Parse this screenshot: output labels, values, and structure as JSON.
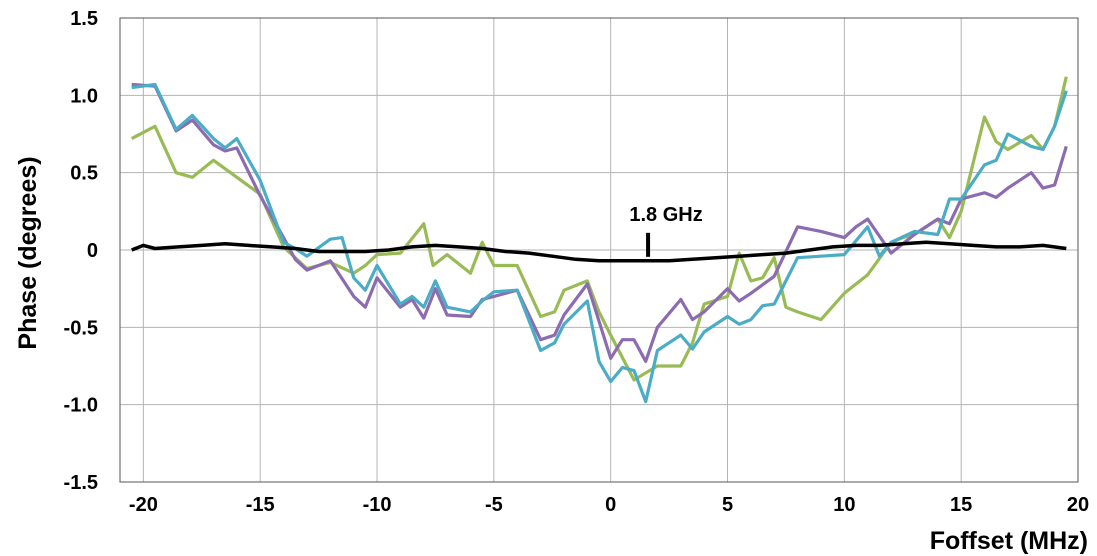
{
  "chart_data": {
    "type": "line",
    "title": "",
    "xlabel": "Foffset (MHz)",
    "ylabel": "Phase (degrees)",
    "xlim": [
      -21,
      20
    ],
    "ylim": [
      -1.5,
      1.5
    ],
    "x_ticks": [
      -20,
      -15,
      -10,
      -5,
      0,
      5,
      10,
      15,
      20
    ],
    "x_tick_labels": [
      "-20",
      "-15",
      "-10",
      "-5",
      "0",
      "5",
      "10",
      "15",
      "20"
    ],
    "y_ticks": [
      1.5,
      1.0,
      0.5,
      0,
      -0.5,
      -1.0,
      -1.5
    ],
    "y_tick_labels": [
      "1.5",
      "1.0",
      "0.5",
      "0",
      "-0.5",
      "-1.0",
      "-1.5"
    ],
    "grid": true,
    "legend": "none",
    "annotations": [
      {
        "text": "1.8 GHz",
        "x": 1.6,
        "y": -0.07
      }
    ],
    "series": [
      {
        "color": "#99bb55",
        "x": [
          -20.5,
          -19.5,
          -18.6,
          -17.9,
          -17,
          -15,
          -14,
          -13,
          -12.5,
          -12,
          -11,
          -10.5,
          -10,
          -9,
          -8,
          -7.6,
          -7,
          -6,
          -5.5,
          -5,
          -4,
          -3,
          -2.4,
          -2,
          -1,
          -0.5,
          0,
          1,
          2,
          3,
          3.5,
          4,
          5,
          5.5,
          6,
          6.5,
          7,
          7.5,
          8,
          9,
          10,
          11,
          12,
          12.5,
          13,
          14,
          14.5,
          15,
          16,
          16.5,
          17,
          18,
          18.5,
          19,
          19.5
        ],
        "y": [
          0.72,
          0.8,
          0.5,
          0.47,
          0.58,
          0.36,
          0.02,
          -0.12,
          -0.1,
          -0.08,
          -0.15,
          -0.1,
          -0.03,
          -0.02,
          0.17,
          -0.1,
          -0.03,
          -0.15,
          0.05,
          -0.1,
          -0.1,
          -0.43,
          -0.4,
          -0.26,
          -0.2,
          -0.4,
          -0.55,
          -0.84,
          -0.75,
          -0.75,
          -0.6,
          -0.35,
          -0.3,
          -0.02,
          -0.2,
          -0.18,
          -0.05,
          -0.37,
          -0.4,
          -0.45,
          -0.28,
          -0.16,
          0.05,
          0.08,
          0.1,
          0.2,
          0.08,
          0.25,
          0.86,
          0.7,
          0.65,
          0.74,
          0.65,
          0.8,
          1.12
        ]
      },
      {
        "color": "#8c6bb1",
        "x": [
          -20.5,
          -19.5,
          -18.6,
          -17.9,
          -17,
          -16.5,
          -16,
          -15,
          -14,
          -13.5,
          -13,
          -12,
          -11,
          -10.5,
          -10,
          -9,
          -8.5,
          -8,
          -7.5,
          -7,
          -6,
          -5.5,
          -5,
          -4,
          -3,
          -2.4,
          -2,
          -1,
          0,
          0.5,
          1,
          1.5,
          2,
          3,
          3.5,
          4,
          5,
          5.5,
          6,
          7,
          8,
          9,
          10,
          10.5,
          11,
          12,
          13,
          14,
          14.5,
          15,
          16,
          16.5,
          17,
          18,
          18.5,
          19,
          19.5
        ],
        "y": [
          1.07,
          1.06,
          0.77,
          0.84,
          0.68,
          0.64,
          0.66,
          0.35,
          0.08,
          -0.06,
          -0.13,
          -0.07,
          -0.3,
          -0.37,
          -0.18,
          -0.37,
          -0.32,
          -0.44,
          -0.25,
          -0.42,
          -0.43,
          -0.32,
          -0.3,
          -0.26,
          -0.58,
          -0.55,
          -0.42,
          -0.22,
          -0.7,
          -0.58,
          -0.58,
          -0.72,
          -0.5,
          -0.32,
          -0.45,
          -0.4,
          -0.25,
          -0.33,
          -0.28,
          -0.17,
          0.15,
          0.12,
          0.08,
          0.15,
          0.2,
          -0.02,
          0.1,
          0.2,
          0.17,
          0.33,
          0.37,
          0.34,
          0.4,
          0.5,
          0.4,
          0.42,
          0.67
        ]
      },
      {
        "color": "#4bacc6",
        "x": [
          -20.5,
          -19.5,
          -18.6,
          -17.9,
          -17,
          -16.5,
          -16,
          -15,
          -14,
          -13.5,
          -13,
          -12,
          -11.5,
          -11,
          -10.5,
          -10,
          -9,
          -8.5,
          -8,
          -7.5,
          -7,
          -6,
          -5.5,
          -5,
          -4,
          -3,
          -2.4,
          -2,
          -1,
          -0.5,
          0,
          0.5,
          1,
          1.5,
          2,
          3,
          3.5,
          4,
          5,
          5.5,
          6,
          6.5,
          7,
          8,
          9,
          10,
          11,
          11.5,
          12,
          13,
          14,
          14.5,
          15,
          16,
          16.5,
          17,
          18,
          18.5,
          19,
          19.5
        ],
        "y": [
          1.05,
          1.07,
          0.78,
          0.87,
          0.72,
          0.66,
          0.72,
          0.45,
          0.05,
          0.01,
          -0.04,
          0.07,
          0.08,
          -0.18,
          -0.26,
          -0.1,
          -0.35,
          -0.3,
          -0.37,
          -0.2,
          -0.37,
          -0.4,
          -0.33,
          -0.27,
          -0.26,
          -0.65,
          -0.6,
          -0.48,
          -0.33,
          -0.72,
          -0.85,
          -0.76,
          -0.78,
          -0.98,
          -0.65,
          -0.55,
          -0.64,
          -0.53,
          -0.43,
          -0.48,
          -0.45,
          -0.36,
          -0.35,
          -0.05,
          -0.04,
          -0.03,
          0.15,
          -0.04,
          0.05,
          0.12,
          0.1,
          0.33,
          0.33,
          0.55,
          0.58,
          0.75,
          0.67,
          0.65,
          0.8,
          1.03
        ]
      },
      {
        "color": "#000000",
        "x": [
          -20.5,
          -20,
          -19.5,
          -18.5,
          -17.5,
          -16.5,
          -15.5,
          -14.5,
          -13.5,
          -12.5,
          -11.5,
          -10.5,
          -9.5,
          -8.5,
          -7.5,
          -6.5,
          -5.5,
          -4.5,
          -3.5,
          -2.5,
          -1.5,
          -0.5,
          0.5,
          1.5,
          2.5,
          3.5,
          4.5,
          5.5,
          6.5,
          7.5,
          8.5,
          9.5,
          10.5,
          11.5,
          12.5,
          13.5,
          14.5,
          15.5,
          16.5,
          17.5,
          18.5,
          19.5
        ],
        "y": [
          0.0,
          0.03,
          0.01,
          0.02,
          0.03,
          0.04,
          0.03,
          0.02,
          0.01,
          -0.01,
          -0.01,
          -0.01,
          0.0,
          0.02,
          0.03,
          0.02,
          0.01,
          -0.01,
          -0.02,
          -0.04,
          -0.06,
          -0.07,
          -0.07,
          -0.07,
          -0.07,
          -0.06,
          -0.05,
          -0.04,
          -0.03,
          -0.02,
          0.0,
          0.02,
          0.03,
          0.03,
          0.04,
          0.05,
          0.04,
          0.03,
          0.02,
          0.02,
          0.03,
          0.01
        ]
      }
    ]
  }
}
